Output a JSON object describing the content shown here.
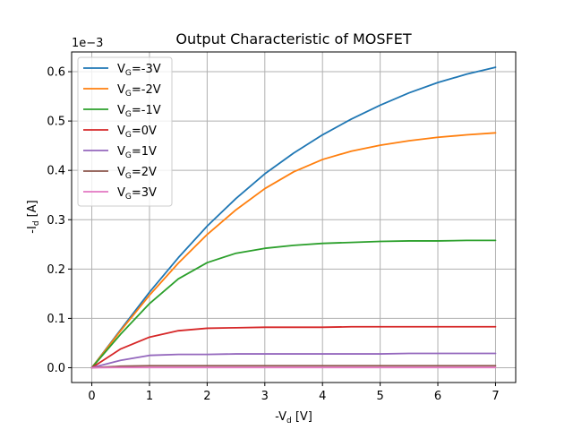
{
  "chart_data": {
    "type": "line",
    "title": "Output Characteristic of MOSFET",
    "xlabel": {
      "main": "-V",
      "sub": "d",
      "unit": " [V]"
    },
    "ylabel": {
      "main": "-I",
      "sub": "d",
      "unit": " [A]"
    },
    "y_offset_label": "1e−3",
    "xlim": [
      -0.35,
      7.35
    ],
    "ylim": [
      -3e-05,
      0.00064
    ],
    "xticks": [
      0,
      1,
      2,
      3,
      4,
      5,
      6,
      7
    ],
    "xtick_labels": [
      "0",
      "1",
      "2",
      "3",
      "4",
      "5",
      "6",
      "7"
    ],
    "yticks": [
      0.0,
      0.0001,
      0.0002,
      0.0003,
      0.0004,
      0.0005,
      0.0006
    ],
    "ytick_labels": [
      "0.0",
      "0.1",
      "0.2",
      "0.3",
      "0.4",
      "0.5",
      "0.6"
    ],
    "grid": true,
    "legend_position": "upper-left",
    "x": [
      0,
      0.5,
      1,
      1.5,
      2,
      2.5,
      3,
      3.5,
      4,
      4.5,
      5,
      5.5,
      6,
      6.5,
      7
    ],
    "series": [
      {
        "name": {
          "main": "V",
          "sub": "G",
          "tail": "=-3V"
        },
        "color": "#1f77b4",
        "values": [
          0,
          7.7e-05,
          0.000153,
          0.000223,
          0.000287,
          0.000343,
          0.000393,
          0.000435,
          0.000472,
          0.000504,
          0.000532,
          0.000557,
          0.000578,
          0.000595,
          0.000609
        ]
      },
      {
        "name": {
          "main": "V",
          "sub": "G",
          "tail": "=-2V"
        },
        "color": "#ff7f0e",
        "values": [
          0,
          7.5e-05,
          0.000147,
          0.000212,
          0.00027,
          0.00032,
          0.000363,
          0.000397,
          0.000422,
          0.000439,
          0.000451,
          0.00046,
          0.000467,
          0.000472,
          0.000476
        ]
      },
      {
        "name": {
          "main": "V",
          "sub": "G",
          "tail": "=-1V"
        },
        "color": "#2ca02c",
        "values": [
          0,
          6.8e-05,
          0.00013,
          0.00018,
          0.000213,
          0.000232,
          0.000242,
          0.000248,
          0.000252,
          0.000254,
          0.000256,
          0.000257,
          0.000257,
          0.000258,
          0.000258
        ]
      },
      {
        "name": {
          "main": "V",
          "sub": "G",
          "tail": "=0V"
        },
        "color": "#d62728",
        "values": [
          0,
          3.8e-05,
          6.2e-05,
          7.5e-05,
          8e-05,
          8.1e-05,
          8.2e-05,
          8.2e-05,
          8.2e-05,
          8.3e-05,
          8.3e-05,
          8.3e-05,
          8.3e-05,
          8.3e-05,
          8.3e-05
        ]
      },
      {
        "name": {
          "main": "V",
          "sub": "G",
          "tail": "=1V"
        },
        "color": "#9467bd",
        "values": [
          0,
          1.5e-05,
          2.5e-05,
          2.7e-05,
          2.7e-05,
          2.8e-05,
          2.8e-05,
          2.8e-05,
          2.8e-05,
          2.8e-05,
          2.8e-05,
          2.9e-05,
          2.9e-05,
          2.9e-05,
          2.9e-05
        ]
      },
      {
        "name": {
          "main": "V",
          "sub": "G",
          "tail": "=2V"
        },
        "color": "#8c564b",
        "values": [
          0,
          3e-06,
          4e-06,
          4e-06,
          4e-06,
          4e-06,
          4e-06,
          4e-06,
          4e-06,
          4e-06,
          4e-06,
          4e-06,
          4e-06,
          4e-06,
          4e-06
        ]
      },
      {
        "name": {
          "main": "V",
          "sub": "G",
          "tail": "=3V"
        },
        "color": "#e377c2",
        "values": [
          0,
          5e-07,
          5e-07,
          5e-07,
          5e-07,
          5e-07,
          5e-07,
          5e-07,
          5e-07,
          5e-07,
          5e-07,
          5e-07,
          5e-07,
          5e-07,
          5e-07
        ]
      }
    ]
  }
}
